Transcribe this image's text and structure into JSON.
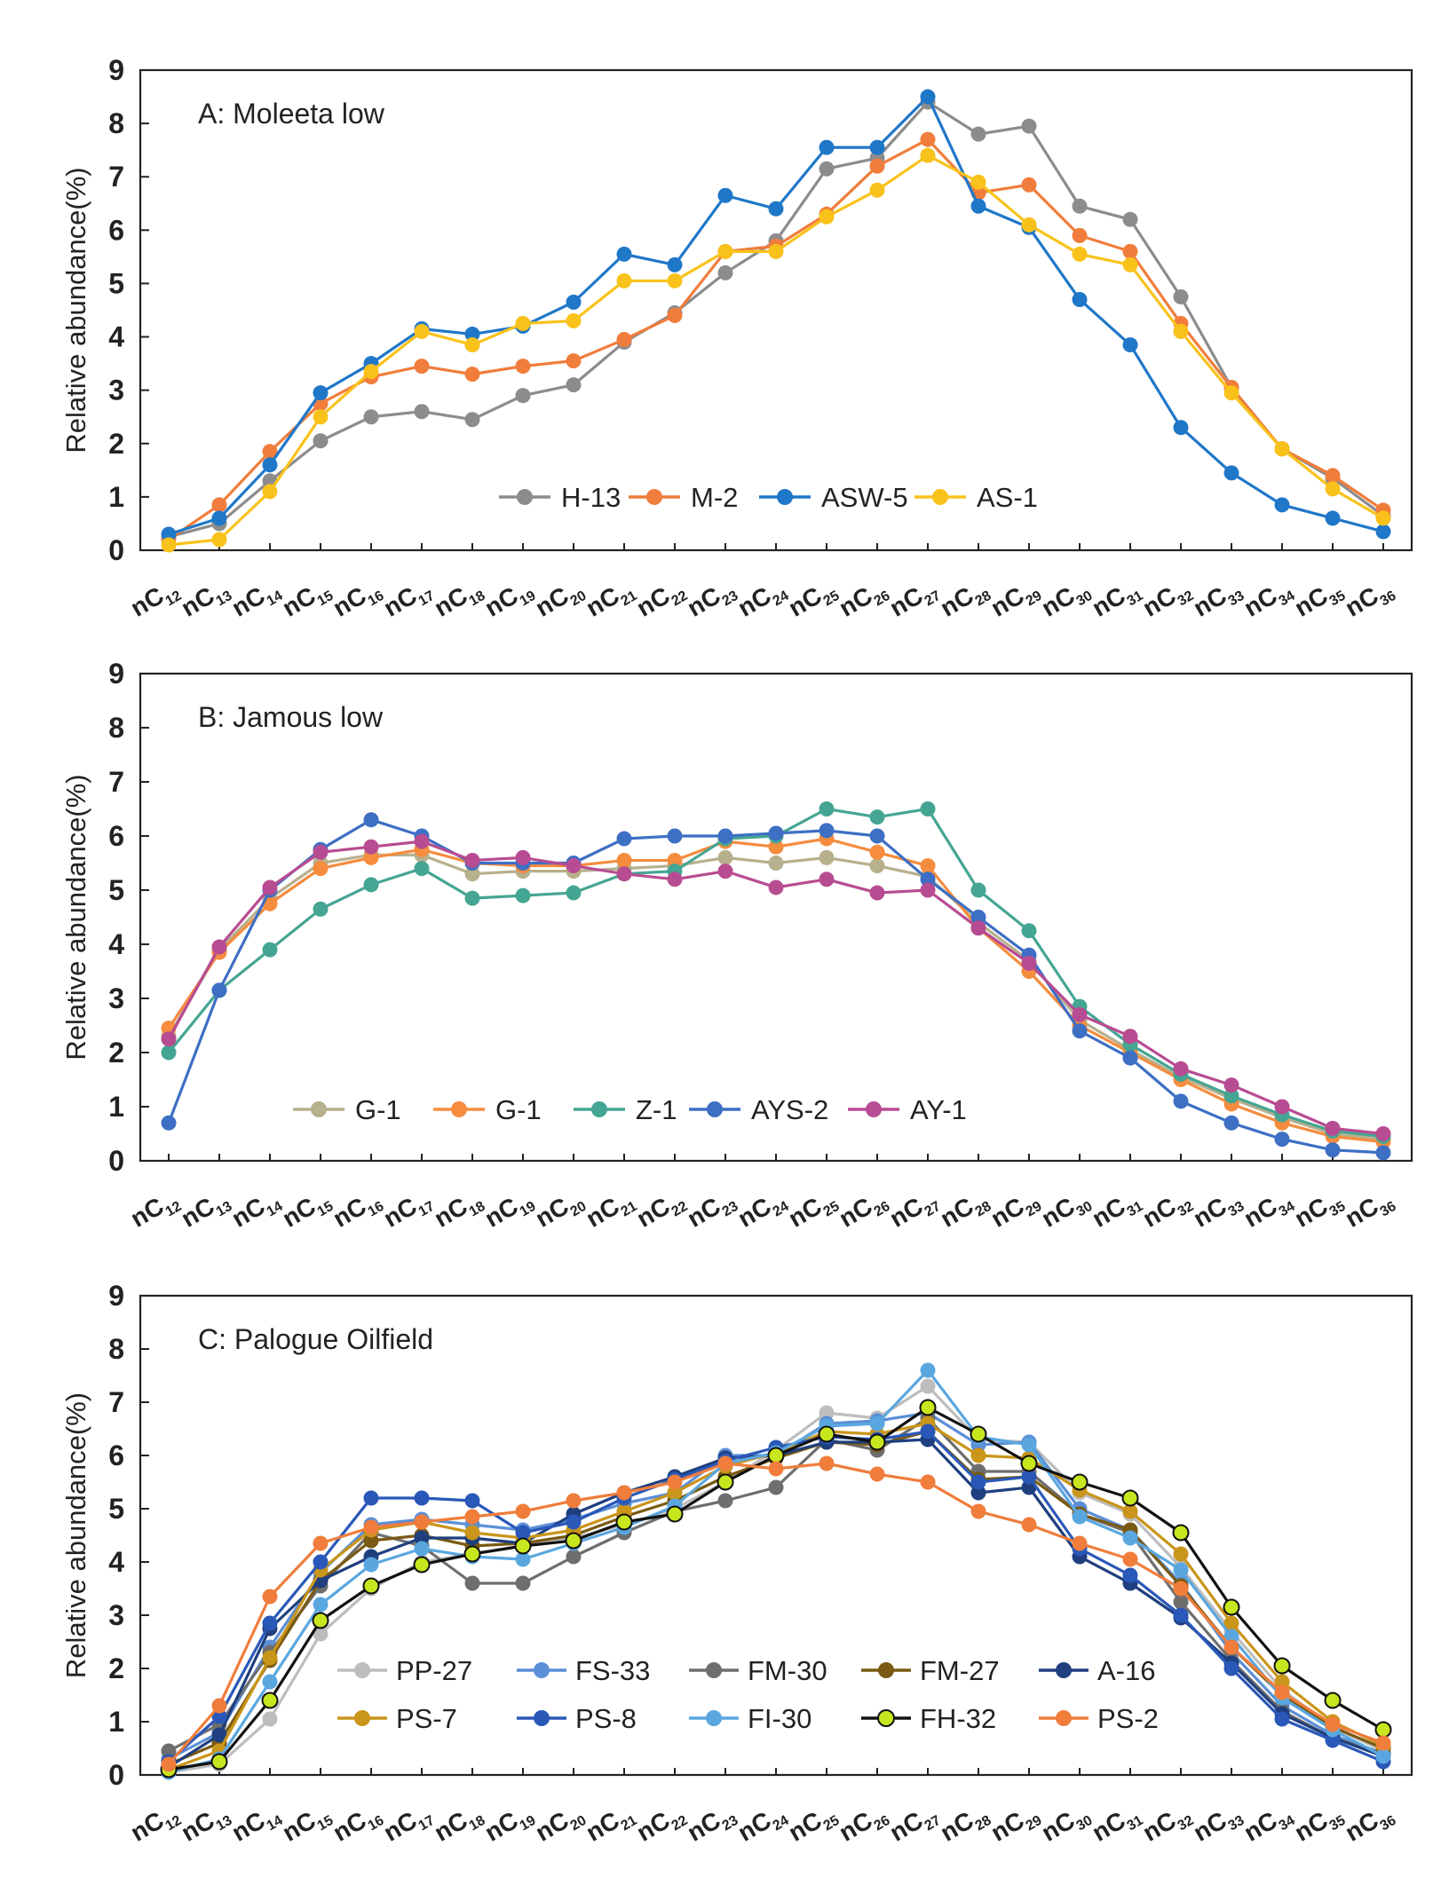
{
  "chart_data": [
    {
      "type": "line",
      "title": "A: Moleeta low",
      "xlabel": "",
      "ylabel": "Relative abundance(%)",
      "ylim": [
        0,
        9
      ],
      "yticks": [
        0,
        1,
        2,
        3,
        4,
        5,
        6,
        7,
        8,
        9
      ],
      "categories": [
        "12",
        "13",
        "14",
        "15",
        "16",
        "17",
        "18",
        "19",
        "20",
        "21",
        "22",
        "23",
        "24",
        "25",
        "26",
        "27",
        "28",
        "29",
        "30",
        "31",
        "32",
        "33",
        "34",
        "35",
        "36"
      ],
      "category_prefix": "nC",
      "legend_position": "bottom-right",
      "series": [
        {
          "name": "H-13",
          "color": "#8c8c8c",
          "values": [
            0.25,
            0.5,
            1.3,
            2.05,
            2.5,
            2.6,
            2.45,
            2.9,
            3.1,
            3.9,
            4.45,
            5.2,
            5.8,
            7.15,
            7.35,
            8.4,
            7.8,
            7.95,
            6.45,
            6.2,
            4.75,
            3.05,
            1.9,
            1.35,
            0.65
          ]
        },
        {
          "name": "M-2",
          "color": "#f07d3c",
          "values": [
            0.2,
            0.85,
            1.85,
            2.75,
            3.25,
            3.45,
            3.3,
            3.45,
            3.55,
            3.95,
            4.4,
            5.6,
            5.7,
            6.3,
            7.2,
            7.7,
            6.7,
            6.85,
            5.9,
            5.6,
            4.25,
            3.05,
            1.9,
            1.4,
            0.75
          ]
        },
        {
          "name": "ASW-5",
          "color": "#1f77c8",
          "values": [
            0.3,
            0.6,
            1.6,
            2.95,
            3.5,
            4.15,
            4.05,
            4.2,
            4.65,
            5.55,
            5.35,
            6.65,
            6.4,
            7.55,
            7.55,
            8.5,
            6.45,
            6.05,
            4.7,
            3.85,
            2.3,
            1.45,
            0.85,
            0.6,
            0.35
          ]
        },
        {
          "name": "AS-1",
          "color": "#f9c21b",
          "values": [
            0.1,
            0.2,
            1.1,
            2.5,
            3.35,
            4.1,
            3.85,
            4.25,
            4.3,
            5.05,
            5.05,
            5.6,
            5.6,
            6.25,
            6.75,
            7.4,
            6.9,
            6.1,
            5.55,
            5.35,
            4.1,
            2.95,
            1.9,
            1.15,
            0.6
          ]
        }
      ]
    },
    {
      "type": "line",
      "title": "B: Jamous low",
      "xlabel": "",
      "ylabel": "Relative abundance(%)",
      "ylim": [
        0,
        9
      ],
      "yticks": [
        0,
        1,
        2,
        3,
        4,
        5,
        6,
        7,
        8,
        9
      ],
      "categories": [
        "12",
        "13",
        "14",
        "15",
        "16",
        "17",
        "18",
        "19",
        "20",
        "21",
        "22",
        "23",
        "24",
        "25",
        "26",
        "27",
        "28",
        "29",
        "30",
        "31",
        "32",
        "33",
        "34",
        "35",
        "36"
      ],
      "category_prefix": "nC",
      "legend_position": "bottom-center",
      "series": [
        {
          "name": "G-1",
          "color": "#b7b08d",
          "values": [
            2.3,
            3.9,
            4.85,
            5.5,
            5.65,
            5.65,
            5.3,
            5.35,
            5.35,
            5.4,
            5.45,
            5.6,
            5.5,
            5.6,
            5.45,
            5.25,
            4.4,
            3.7,
            2.6,
            2.05,
            1.55,
            1.15,
            0.8,
            0.5,
            0.4
          ]
        },
        {
          "name": "G-1",
          "color": "#f58c3e",
          "values": [
            2.45,
            3.85,
            4.75,
            5.4,
            5.6,
            5.75,
            5.5,
            5.45,
            5.45,
            5.55,
            5.55,
            5.9,
            5.8,
            5.95,
            5.7,
            5.45,
            4.3,
            3.5,
            2.5,
            2.0,
            1.5,
            1.05,
            0.7,
            0.45,
            0.35
          ]
        },
        {
          "name": "Z-1",
          "color": "#45a593",
          "values": [
            2.0,
            3.15,
            3.9,
            4.65,
            5.1,
            5.4,
            4.85,
            4.9,
            4.95,
            5.3,
            5.35,
            5.95,
            6.0,
            6.5,
            6.35,
            6.5,
            5.0,
            4.25,
            2.85,
            2.15,
            1.6,
            1.2,
            0.85,
            0.55,
            0.45
          ]
        },
        {
          "name": "AYS-2",
          "color": "#3d6fc4",
          "values": [
            0.7,
            3.15,
            5.0,
            5.75,
            6.3,
            6.0,
            5.5,
            5.5,
            5.5,
            5.95,
            6.0,
            6.0,
            6.05,
            6.1,
            6.0,
            5.2,
            4.5,
            3.8,
            2.4,
            1.9,
            1.1,
            0.7,
            0.4,
            0.2,
            0.15
          ]
        },
        {
          "name": "AY-1",
          "color": "#b84c92",
          "values": [
            2.25,
            3.95,
            5.05,
            5.7,
            5.8,
            5.9,
            5.55,
            5.6,
            5.45,
            5.3,
            5.2,
            5.35,
            5.05,
            5.2,
            4.95,
            5.0,
            4.3,
            3.65,
            2.7,
            2.3,
            1.7,
            1.4,
            1.0,
            0.6,
            0.5
          ]
        }
      ]
    },
    {
      "type": "line",
      "title": "C: Palogue Oilfield",
      "xlabel": "",
      "ylabel": "Relative abundance(%)",
      "ylim": [
        0,
        9
      ],
      "yticks": [
        0,
        1,
        2,
        3,
        4,
        5,
        6,
        7,
        8,
        9
      ],
      "categories": [
        "12",
        "13",
        "14",
        "15",
        "16",
        "17",
        "18",
        "19",
        "20",
        "21",
        "22",
        "23",
        "24",
        "25",
        "26",
        "27",
        "28",
        "29",
        "30",
        "31",
        "32",
        "33",
        "34",
        "35",
        "36"
      ],
      "category_prefix": "nC",
      "legend_position": "bottom-center",
      "series": [
        {
          "name": "PP-27",
          "color": "#bdbdbd",
          "values": [
            0.05,
            0.2,
            1.05,
            2.65,
            3.5,
            4.0,
            4.15,
            4.3,
            4.45,
            4.7,
            5.0,
            5.5,
            6.1,
            6.8,
            6.7,
            7.3,
            6.3,
            6.25,
            5.3,
            4.9,
            3.9,
            2.7,
            1.6,
            0.9,
            0.45
          ]
        },
        {
          "name": "FS-33",
          "color": "#5b8fd6",
          "values": [
            0.3,
            0.8,
            2.4,
            3.8,
            4.7,
            4.8,
            4.7,
            4.6,
            4.8,
            5.1,
            5.3,
            6.0,
            6.0,
            6.6,
            6.65,
            6.8,
            6.2,
            6.25,
            5.0,
            4.6,
            3.6,
            2.3,
            1.3,
            0.75,
            0.4
          ]
        },
        {
          "name": "FM-30",
          "color": "#6e6e6e",
          "values": [
            0.45,
            0.95,
            2.3,
            3.55,
            4.55,
            4.3,
            3.6,
            3.6,
            4.1,
            4.55,
            4.95,
            5.15,
            5.4,
            6.3,
            6.1,
            6.7,
            5.7,
            5.7,
            4.9,
            4.55,
            3.25,
            2.15,
            1.2,
            0.7,
            0.4
          ]
        },
        {
          "name": "FM-27",
          "color": "#7a5a12",
          "values": [
            0.2,
            0.6,
            2.15,
            3.65,
            4.4,
            4.5,
            4.3,
            4.35,
            4.5,
            4.85,
            5.15,
            5.6,
            5.95,
            6.25,
            6.2,
            6.45,
            5.55,
            5.6,
            4.9,
            4.6,
            3.55,
            2.4,
            1.5,
            0.9,
            0.5
          ]
        },
        {
          "name": "A-16",
          "color": "#1f3f7f",
          "values": [
            0.15,
            0.75,
            2.75,
            3.65,
            4.1,
            4.45,
            4.45,
            4.35,
            4.9,
            5.3,
            5.6,
            5.95,
            6.0,
            6.25,
            6.25,
            6.3,
            5.3,
            5.4,
            4.1,
            3.6,
            2.95,
            2.1,
            1.15,
            0.7,
            0.35
          ]
        },
        {
          "name": "PS-7",
          "color": "#c9951a",
          "values": [
            0.1,
            0.45,
            2.2,
            3.85,
            4.6,
            4.75,
            4.55,
            4.45,
            4.6,
            4.95,
            5.3,
            5.8,
            6.05,
            6.45,
            6.4,
            6.6,
            6.0,
            5.95,
            5.35,
            4.95,
            4.15,
            2.85,
            1.75,
            1.0,
            0.55
          ]
        },
        {
          "name": "PS-8",
          "color": "#2a58b8",
          "values": [
            0.25,
            1.1,
            2.85,
            4.0,
            5.2,
            5.2,
            5.15,
            4.55,
            4.75,
            5.2,
            5.55,
            5.9,
            6.15,
            6.35,
            6.3,
            6.45,
            5.5,
            5.6,
            4.25,
            3.75,
            3.0,
            2.0,
            1.05,
            0.65,
            0.25
          ]
        },
        {
          "name": "FI-30",
          "color": "#5aa7e0",
          "values": [
            0.05,
            0.3,
            1.75,
            3.2,
            3.95,
            4.25,
            4.1,
            4.05,
            4.35,
            4.65,
            5.05,
            5.85,
            6.05,
            6.55,
            6.6,
            7.6,
            6.35,
            6.2,
            4.85,
            4.45,
            3.85,
            2.6,
            1.45,
            0.85,
            0.35
          ]
        },
        {
          "name": "FH-32",
          "color": "#111111",
          "marker_fill": "#c8e61e",
          "values": [
            0.1,
            0.25,
            1.4,
            2.9,
            3.55,
            3.95,
            4.15,
            4.3,
            4.4,
            4.75,
            4.9,
            5.5,
            6.0,
            6.4,
            6.25,
            6.9,
            6.4,
            5.85,
            5.5,
            5.2,
            4.55,
            3.15,
            2.05,
            1.4,
            0.85
          ]
        },
        {
          "name": "PS-2",
          "color": "#f07d3c",
          "values": [
            0.2,
            1.3,
            3.35,
            4.35,
            4.65,
            4.75,
            4.85,
            4.95,
            5.15,
            5.3,
            5.5,
            5.85,
            5.75,
            5.85,
            5.65,
            5.5,
            4.95,
            4.7,
            4.35,
            4.05,
            3.5,
            2.4,
            1.55,
            0.95,
            0.6
          ]
        }
      ]
    }
  ]
}
